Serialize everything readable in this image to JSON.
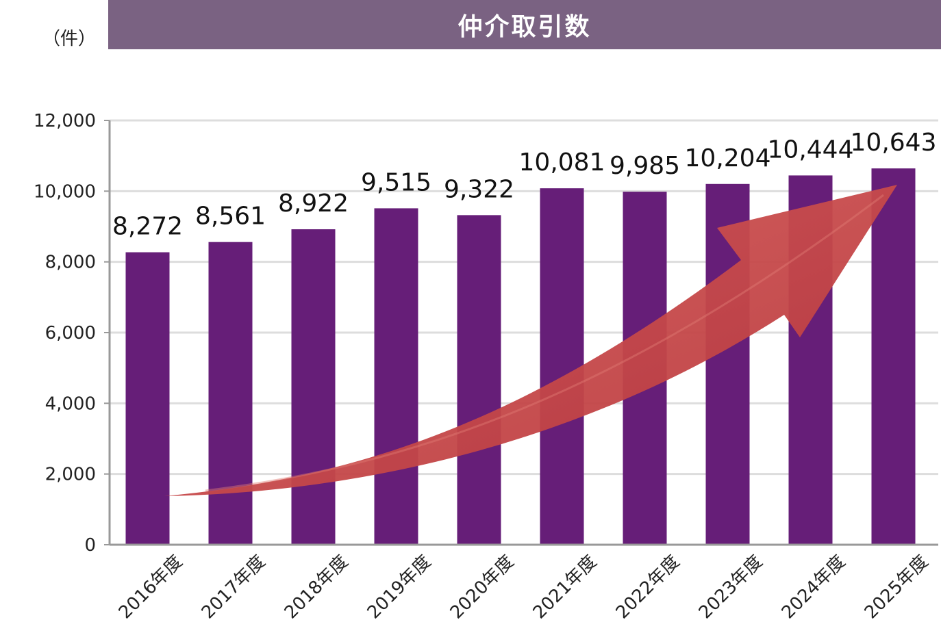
{
  "header": {
    "title": "仲介取引数",
    "unit": "（件）"
  },
  "colors": {
    "title_bg": "#7a6282",
    "bar": "#661e78",
    "arrow": "#c8474a",
    "grid": "#dddddd",
    "axis": "#999999"
  },
  "chart_data": {
    "type": "bar",
    "title": "仲介取引数",
    "ylabel": "（件）",
    "xlabel": "",
    "ylim": [
      0,
      12000
    ],
    "yticks": [
      0,
      2000,
      4000,
      6000,
      8000,
      10000,
      12000
    ],
    "ytick_labels": [
      "0",
      "2,000",
      "4,000",
      "6,000",
      "8,000",
      "10,000",
      "12,000"
    ],
    "grid": true,
    "categories": [
      "2016年度",
      "2017年度",
      "2018年度",
      "2019年度",
      "2020年度",
      "2021年度",
      "2022年度",
      "2023年度",
      "2024年度",
      "2025年度"
    ],
    "values": [
      8272,
      8561,
      8922,
      9515,
      9322,
      10081,
      9985,
      10204,
      10444,
      10643
    ],
    "value_labels": [
      "8,272",
      "8,561",
      "8,922",
      "9,515",
      "9,322",
      "10,081",
      "9,985",
      "10,204",
      "10,444",
      "10,643"
    ],
    "annotations": [
      "upward-trend-arrow"
    ]
  }
}
